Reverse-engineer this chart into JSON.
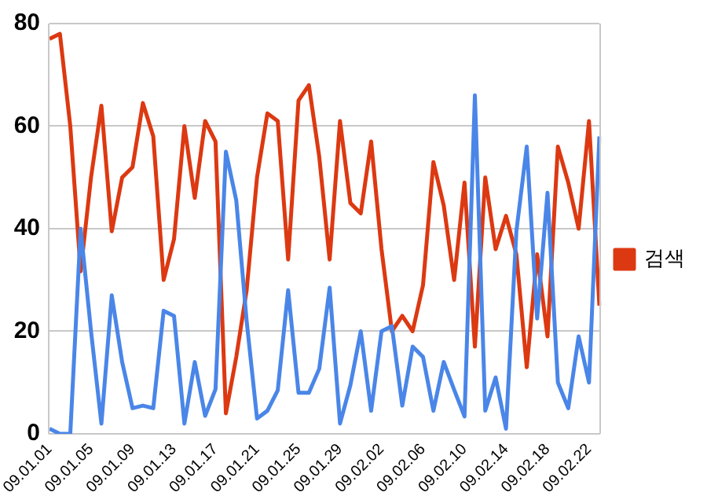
{
  "chart_data": {
    "type": "line",
    "categories": [
      "09.01.01",
      null,
      null,
      null,
      "09.01.05",
      null,
      null,
      null,
      "09.01.09",
      null,
      null,
      null,
      "09.01.13",
      null,
      null,
      null,
      "09.01.17",
      null,
      null,
      null,
      "09.01.21",
      null,
      null,
      null,
      "09.01.25",
      null,
      null,
      null,
      "09.01.29",
      null,
      null,
      null,
      "09.02.02",
      null,
      null,
      null,
      "09.02.06",
      null,
      null,
      null,
      "09.02.10",
      null,
      null,
      null,
      "09.02.14",
      null,
      null,
      null,
      "09.02.18",
      null,
      null,
      null,
      "09.02.22",
      null
    ],
    "series": [
      {
        "color": "#4a86e8",
        "values": [
          1,
          0,
          0,
          40,
          20,
          2,
          27,
          14,
          5,
          5.5,
          5,
          24,
          23,
          2,
          14,
          3.5,
          8.7,
          55,
          45.5,
          22,
          3,
          4.5,
          8.5,
          28,
          8,
          8,
          12.7,
          28.5,
          2,
          9.5,
          20,
          4.5,
          20,
          21,
          5.5,
          17,
          15,
          4.5,
          14,
          8.6,
          3.4,
          66,
          4.5,
          11,
          1,
          39.5,
          56,
          22.5,
          47,
          10,
          5,
          19,
          10,
          58
        ]
      },
      {
        "name": "검색",
        "color": "#dc3912",
        "values": [
          77,
          78,
          60,
          31.7,
          50,
          64,
          39.5,
          50,
          52,
          64.5,
          58,
          30,
          38,
          60,
          46,
          61,
          57,
          4,
          15,
          28,
          50,
          62.5,
          61,
          34,
          65,
          68,
          54,
          34,
          61,
          45,
          43,
          57,
          36,
          20,
          23,
          20,
          29,
          53,
          44.5,
          30,
          49,
          17,
          50,
          36,
          42.5,
          35,
          13,
          35,
          19,
          56,
          49,
          40,
          61,
          25
        ]
      }
    ],
    "ylim": [
      0,
      80
    ],
    "yticks": [
      0,
      20,
      40,
      60,
      80
    ],
    "grid": "y",
    "legend": "right",
    "marker": "none",
    "line_style": "solid"
  }
}
